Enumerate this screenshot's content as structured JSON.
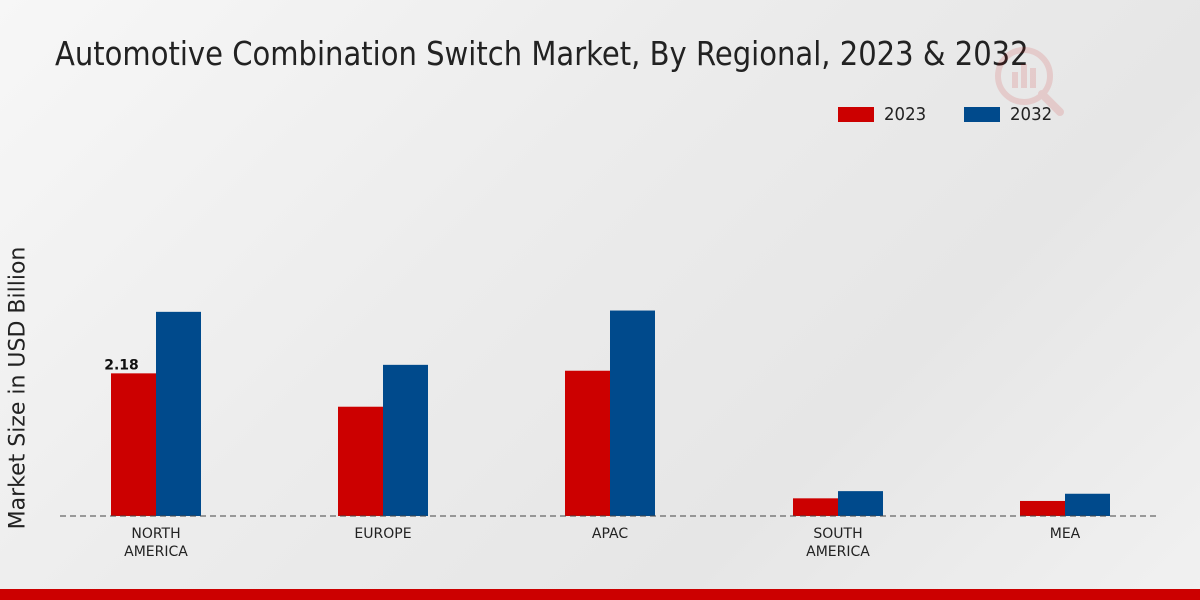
{
  "chart_data": {
    "type": "bar",
    "title": "Automotive Combination Switch Market, By Regional, 2023 & 2032",
    "xlabel": "",
    "ylabel": "Market Size in USD Billion",
    "categories": [
      "NORTH\nAMERICA",
      "EUROPE",
      "APAC",
      "SOUTH\nAMERICA",
      "MEA"
    ],
    "series": [
      {
        "name": "2023",
        "color": "#cc0000",
        "values": [
          2.18,
          1.67,
          2.22,
          0.27,
          0.23
        ]
      },
      {
        "name": "2032",
        "color": "#004a8c",
        "values": [
          3.12,
          2.31,
          3.14,
          0.38,
          0.34
        ]
      }
    ],
    "data_labels": [
      {
        "series": 0,
        "index": 0,
        "text": "2.18"
      }
    ],
    "ylim": [
      0,
      4.6
    ],
    "grid": false,
    "legend_position": "top-right"
  }
}
